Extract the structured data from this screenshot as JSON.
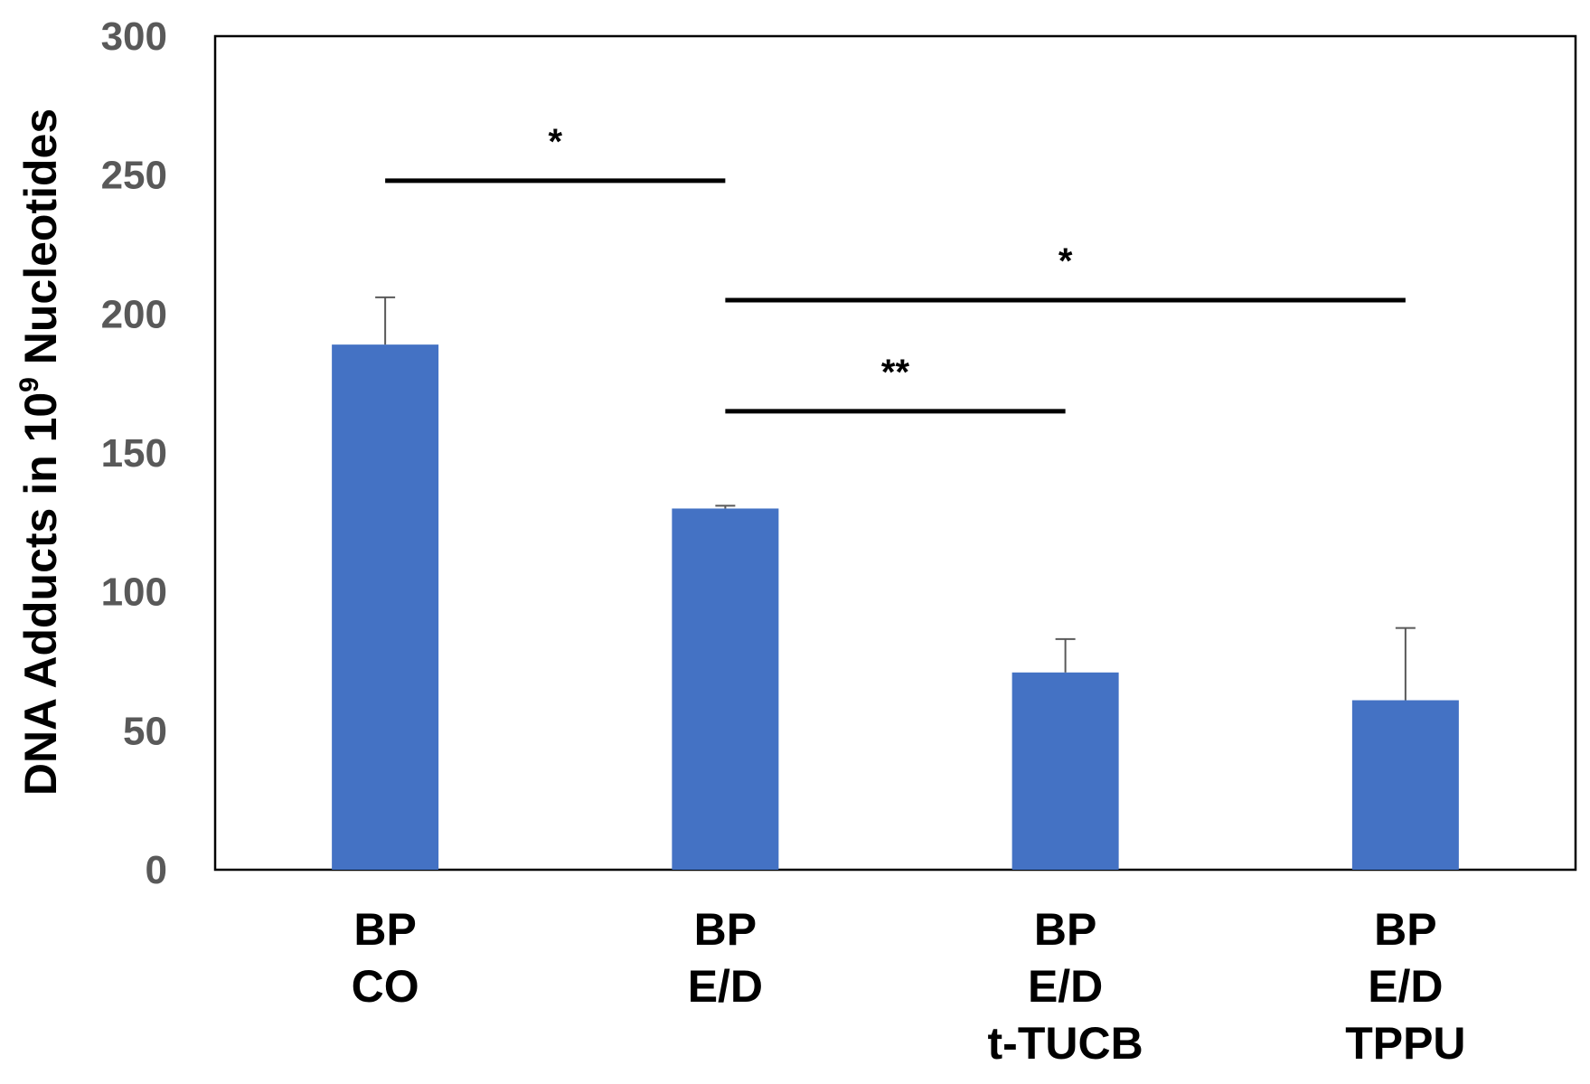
{
  "chart_data": {
    "type": "bar",
    "title": "",
    "xlabel": "",
    "ylabel": {
      "prefix": "DNA Adducts in 10",
      "superscript": "9",
      "suffix": " Nucleotides"
    },
    "ylim": [
      0,
      300
    ],
    "yticks": [
      0,
      50,
      100,
      150,
      200,
      250,
      300
    ],
    "ytick_labels": [
      "0",
      "50",
      "100",
      "150",
      "200",
      "250",
      "300"
    ],
    "categories": [
      [
        "BP",
        "CO"
      ],
      [
        "BP",
        "E/D"
      ],
      [
        "BP",
        "E/D",
        "t-TUCB"
      ],
      [
        "BP",
        "E/D",
        "TPPU"
      ]
    ],
    "values": [
      189,
      130,
      71,
      61
    ],
    "errors": [
      17,
      1,
      12,
      26
    ],
    "bar_color": "#4472C4",
    "grid": false,
    "legend": "none",
    "significance": [
      {
        "from": 0,
        "to": 1,
        "y": 248,
        "label": "*"
      },
      {
        "from": 1,
        "to": 3,
        "y": 205,
        "label": "*"
      },
      {
        "from": 1,
        "to": 2,
        "y": 165,
        "label": "**"
      }
    ]
  }
}
